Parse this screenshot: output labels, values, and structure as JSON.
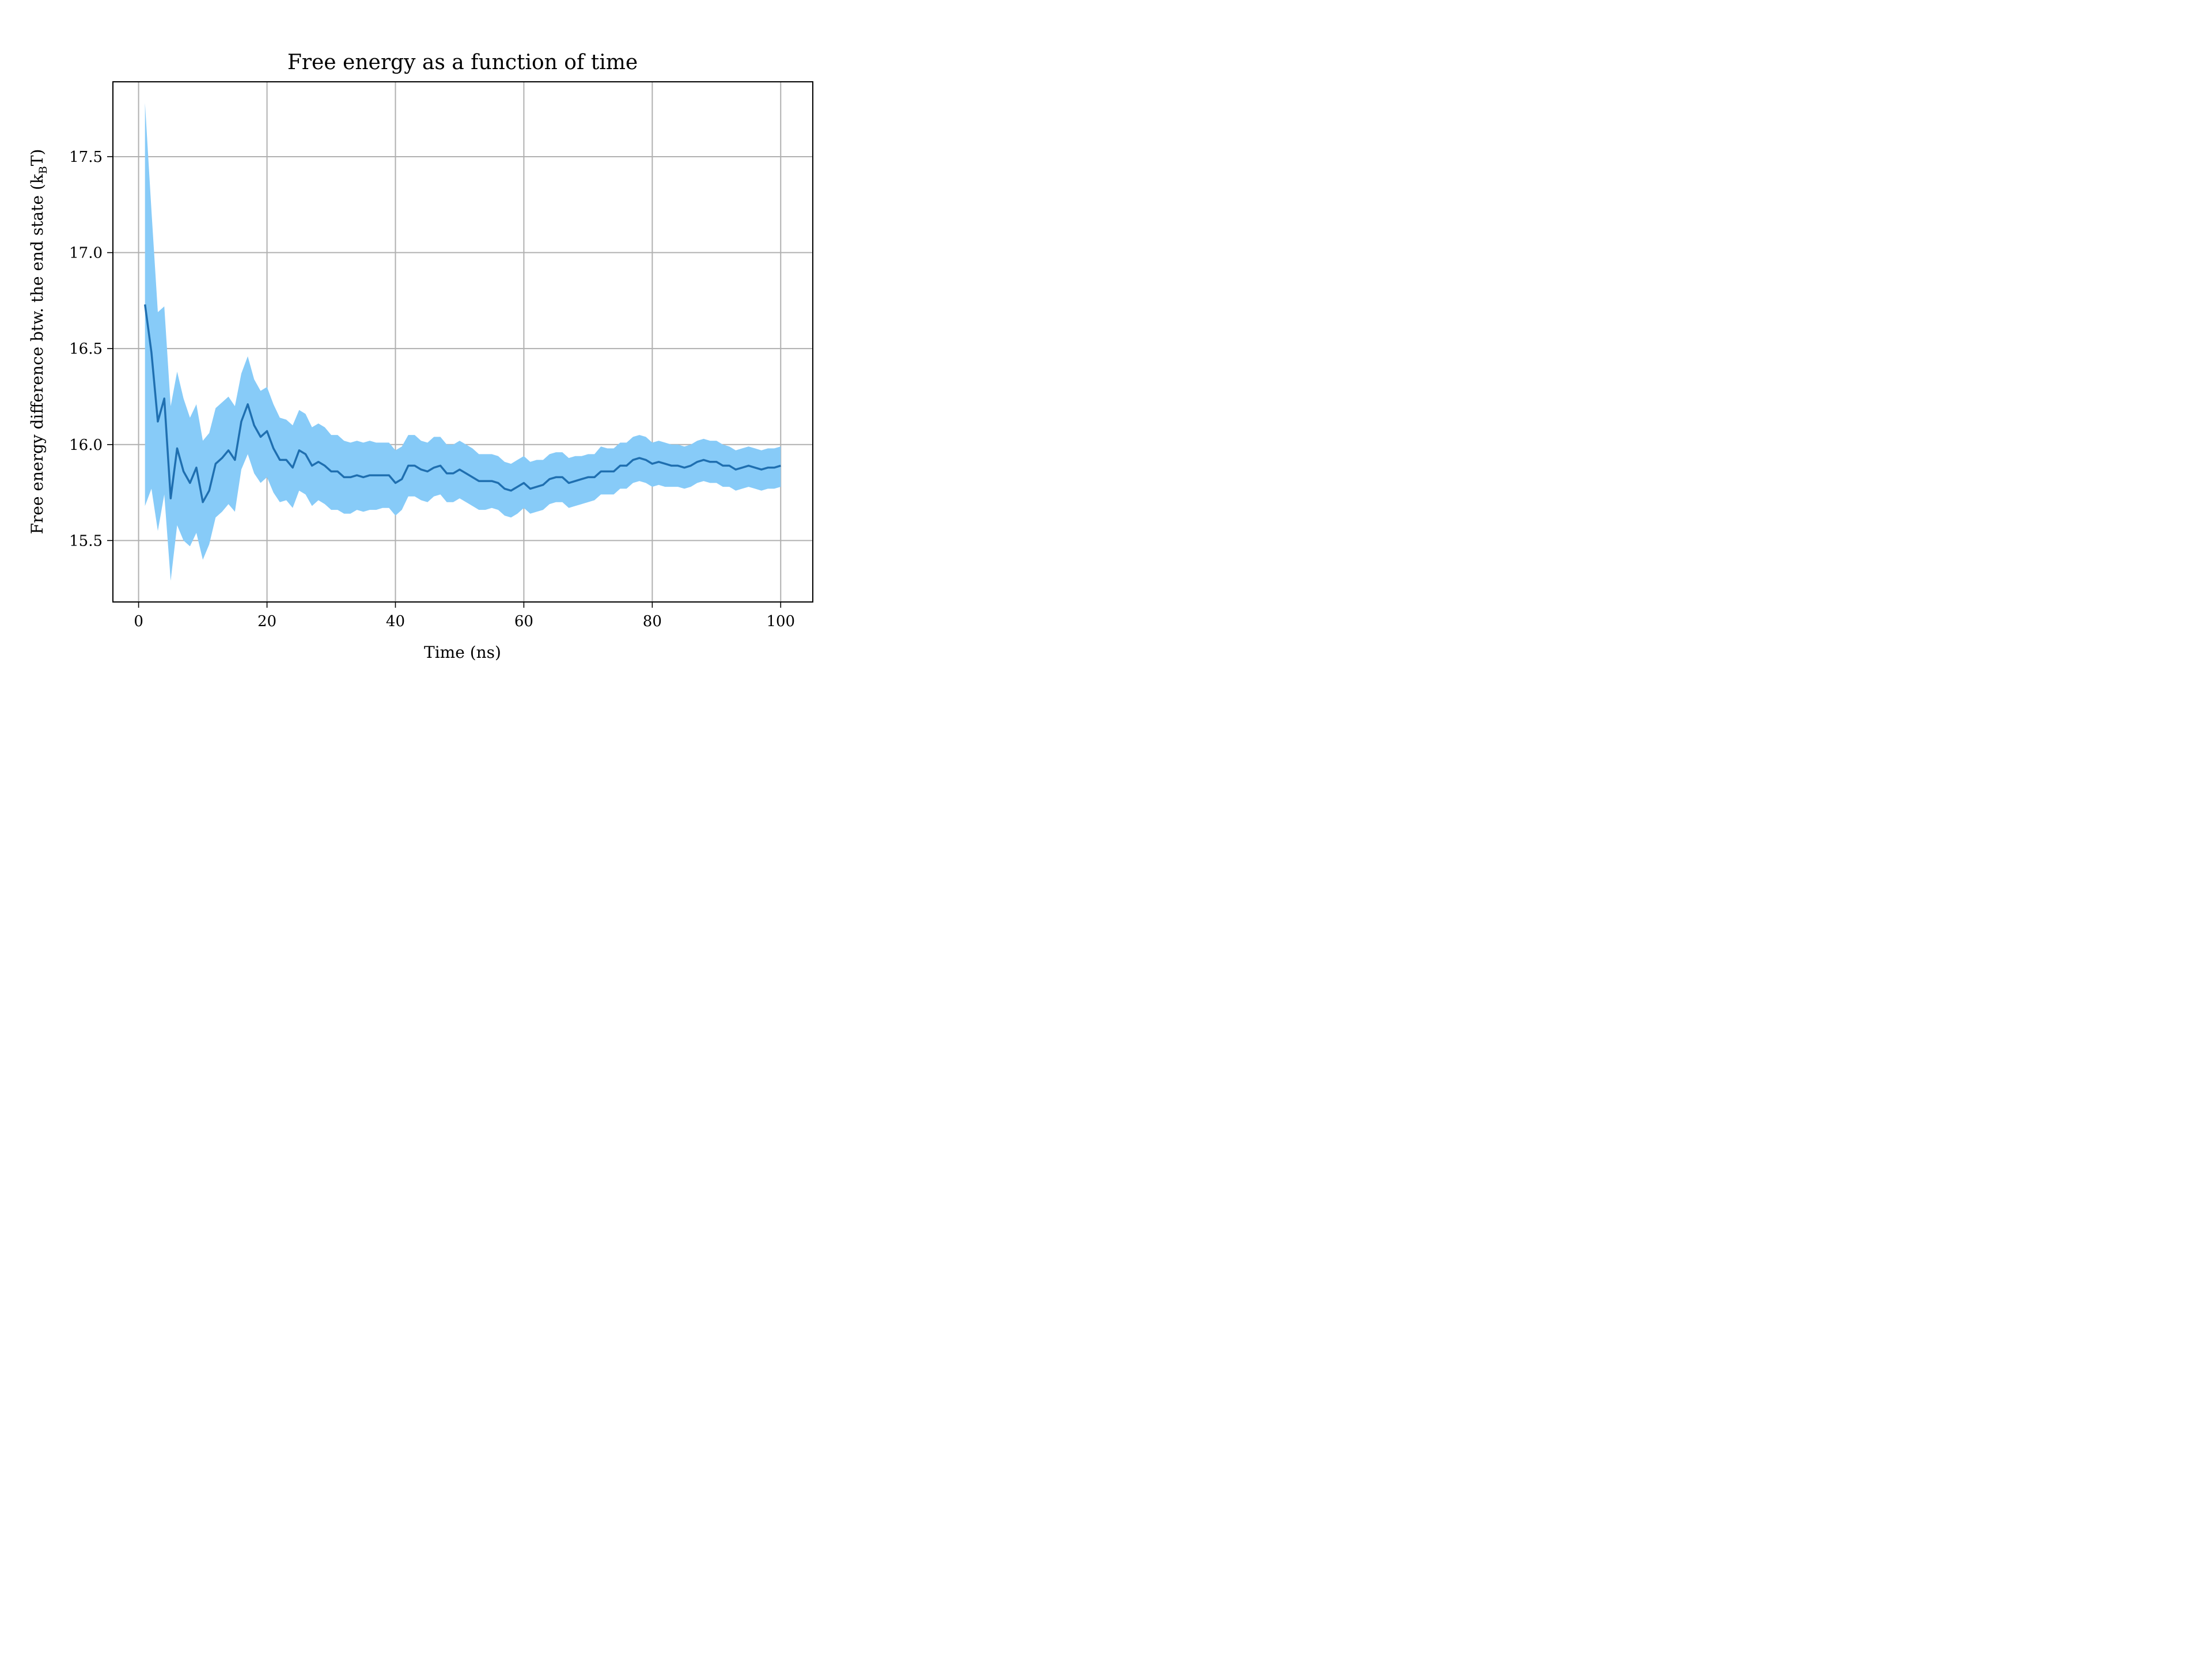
{
  "chart_data": {
    "type": "line",
    "title": "Free energy as a function of time",
    "xlabel": "Time (ns)",
    "ylabel_main": "Free energy difference btw. the end state (k",
    "ylabel_sub": "B",
    "ylabel_end": "T)",
    "xlim": [
      -4,
      105
    ],
    "ylim": [
      15.18,
      17.89
    ],
    "xticks": [
      0,
      20,
      40,
      60,
      80,
      100
    ],
    "xtick_labels": [
      "0",
      "20",
      "40",
      "60",
      "80",
      "100"
    ],
    "yticks": [
      15.5,
      16.0,
      16.5,
      17.0,
      17.5
    ],
    "ytick_labels": [
      "15.5",
      "16.0",
      "16.5",
      "17.0",
      "17.5"
    ],
    "grid": true,
    "colors": {
      "line": "#1f6fb0",
      "band": "#87cbf8"
    },
    "series": [
      {
        "x": [
          1,
          2,
          3,
          4,
          5,
          6,
          7,
          8,
          9,
          10,
          11,
          12,
          13,
          14,
          15,
          16,
          17,
          18,
          19,
          20,
          21,
          22,
          23,
          24,
          25,
          26,
          27,
          28,
          29,
          30,
          31,
          32,
          33,
          34,
          35,
          36,
          37,
          38,
          39,
          40,
          41,
          42,
          43,
          44,
          45,
          46,
          47,
          48,
          49,
          50,
          51,
          52,
          53,
          54,
          55,
          56,
          57,
          58,
          59,
          60,
          61,
          62,
          63,
          64,
          65,
          66,
          67,
          68,
          69,
          70,
          71,
          72,
          73,
          74,
          75,
          76,
          77,
          78,
          79,
          80,
          81,
          82,
          83,
          84,
          85,
          86,
          87,
          88,
          89,
          90,
          91,
          92,
          93,
          94,
          95,
          96,
          97,
          98,
          99,
          100
        ],
        "y": [
          16.73,
          16.48,
          16.12,
          16.24,
          15.72,
          15.98,
          15.86,
          15.8,
          15.88,
          15.7,
          15.76,
          15.9,
          15.93,
          15.97,
          15.92,
          16.12,
          16.21,
          16.1,
          16.04,
          16.07,
          15.98,
          15.92,
          15.92,
          15.88,
          15.97,
          15.95,
          15.89,
          15.91,
          15.89,
          15.86,
          15.86,
          15.83,
          15.83,
          15.84,
          15.83,
          15.84,
          15.84,
          15.84,
          15.84,
          15.8,
          15.82,
          15.89,
          15.89,
          15.87,
          15.86,
          15.88,
          15.89,
          15.85,
          15.85,
          15.87,
          15.85,
          15.83,
          15.81,
          15.81,
          15.81,
          15.8,
          15.77,
          15.76,
          15.78,
          15.8,
          15.77,
          15.78,
          15.79,
          15.82,
          15.83,
          15.83,
          15.8,
          15.81,
          15.82,
          15.83,
          15.83,
          15.86,
          15.86,
          15.86,
          15.89,
          15.89,
          15.92,
          15.93,
          15.92,
          15.9,
          15.91,
          15.9,
          15.89,
          15.89,
          15.88,
          15.89,
          15.91,
          15.92,
          15.91,
          15.91,
          15.89,
          15.89,
          15.87,
          15.88,
          15.89,
          15.88,
          15.87,
          15.88,
          15.88,
          15.89
        ],
        "upper": [
          17.78,
          17.22,
          16.69,
          16.72,
          16.2,
          16.38,
          16.24,
          16.14,
          16.21,
          16.02,
          16.06,
          16.19,
          16.22,
          16.25,
          16.2,
          16.37,
          16.46,
          16.34,
          16.28,
          16.3,
          16.21,
          16.14,
          16.13,
          16.1,
          16.18,
          16.16,
          16.09,
          16.11,
          16.09,
          16.05,
          16.05,
          16.02,
          16.01,
          16.02,
          16.01,
          16.02,
          16.01,
          16.01,
          16.01,
          15.97,
          15.99,
          16.05,
          16.05,
          16.02,
          16.01,
          16.04,
          16.04,
          16.0,
          16.0,
          16.02,
          16.0,
          15.98,
          15.95,
          15.95,
          15.95,
          15.94,
          15.91,
          15.9,
          15.92,
          15.94,
          15.91,
          15.92,
          15.92,
          15.95,
          15.96,
          15.96,
          15.93,
          15.94,
          15.94,
          15.95,
          15.95,
          15.99,
          15.98,
          15.98,
          16.01,
          16.01,
          16.04,
          16.05,
          16.04,
          16.01,
          16.02,
          16.01,
          16.0,
          16.0,
          15.99,
          16.0,
          16.02,
          16.03,
          16.02,
          16.02,
          16.0,
          15.99,
          15.97,
          15.98,
          15.99,
          15.98,
          15.97,
          15.98,
          15.98,
          15.99
        ],
        "lower": [
          15.68,
          15.77,
          15.55,
          15.74,
          15.29,
          15.58,
          15.5,
          15.47,
          15.54,
          15.4,
          15.48,
          15.62,
          15.65,
          15.69,
          15.65,
          15.87,
          15.95,
          15.85,
          15.8,
          15.83,
          15.75,
          15.7,
          15.71,
          15.67,
          15.76,
          15.74,
          15.68,
          15.71,
          15.69,
          15.66,
          15.66,
          15.64,
          15.64,
          15.66,
          15.65,
          15.66,
          15.66,
          15.67,
          15.67,
          15.63,
          15.66,
          15.73,
          15.73,
          15.71,
          15.7,
          15.73,
          15.74,
          15.7,
          15.7,
          15.72,
          15.7,
          15.68,
          15.66,
          15.66,
          15.67,
          15.66,
          15.63,
          15.62,
          15.64,
          15.67,
          15.64,
          15.65,
          15.66,
          15.69,
          15.7,
          15.7,
          15.67,
          15.68,
          15.69,
          15.7,
          15.71,
          15.74,
          15.74,
          15.74,
          15.77,
          15.77,
          15.8,
          15.81,
          15.8,
          15.78,
          15.79,
          15.78,
          15.78,
          15.78,
          15.77,
          15.78,
          15.8,
          15.81,
          15.8,
          15.8,
          15.78,
          15.78,
          15.76,
          15.77,
          15.78,
          15.77,
          15.76,
          15.77,
          15.77,
          15.78
        ]
      }
    ]
  }
}
